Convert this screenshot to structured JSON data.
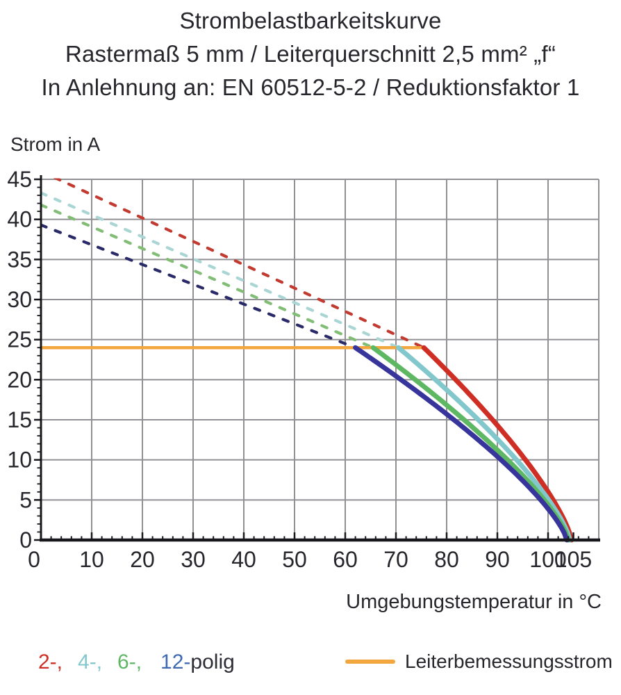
{
  "title": {
    "line1": "Strombelastbarkeitskurve",
    "line2": "Rastermaß 5 mm / Leiterquerschnitt 2,5 mm² „f“",
    "line3": "In Anlehnung an: EN 60512-5-2 / Reduktionsfaktor 1"
  },
  "axis_labels": {
    "y_label": "Strom in A",
    "x_label": "Umgebungstemperatur in °C"
  },
  "chart_data": {
    "type": "line",
    "title": "Strombelastbarkeitskurve",
    "xlabel": "Umgebungstemperatur in °C",
    "ylabel": "Strom in A",
    "xlim": [
      0,
      110
    ],
    "ylim": [
      0,
      45
    ],
    "grid": "on",
    "x_grid_step": 10,
    "y_grid_step": 5,
    "x_major_ticks": [
      0,
      10,
      20,
      30,
      40,
      50,
      60,
      70,
      80,
      90,
      100,
      105
    ],
    "x_minor_step": 2,
    "y_major_step": 5,
    "y_minor_step": 1,
    "rated_current_line": {
      "label": "Leiterbemessungsstrom",
      "current_a": 24,
      "temp_range_c": [
        0,
        75.5
      ],
      "color": "#f2a73e"
    },
    "curve_model": {
      "type": "power",
      "exponent": 0.75
    },
    "series": [
      {
        "name": "2-polig",
        "poles": 2,
        "color": "#ce2e24",
        "dash_color": "#c23a30",
        "current_at_0c_a": 46.0,
        "rated_plateau_a": 24,
        "plateau_end_temp_c": 75.5,
        "zero_current_temp_c": 104.6,
        "line_style_above_rated": "dashed"
      },
      {
        "name": "4-polig",
        "poles": 4,
        "color": "#82c7cb",
        "dash_color": "#a9d5d4",
        "current_at_0c_a": 43.3,
        "rated_plateau_a": 24,
        "plateau_end_temp_c": 70.5,
        "zero_current_temp_c": 104.3,
        "line_style_above_rated": "dashed"
      },
      {
        "name": "6-polig",
        "poles": 6,
        "color": "#5eb763",
        "dash_color": "#82bd76",
        "current_at_0c_a": 41.8,
        "rated_plateau_a": 24,
        "plateau_end_temp_c": 65.5,
        "zero_current_temp_c": 104.0,
        "line_style_above_rated": "dashed"
      },
      {
        "name": "12-polig",
        "poles": 12,
        "color": "#37349b",
        "dash_color": "#2a2a68",
        "current_at_0c_a": 39.3,
        "rated_plateau_a": 24,
        "plateau_end_temp_c": 62.0,
        "zero_current_temp_c": 103.7,
        "line_style_above_rated": "dashed"
      }
    ],
    "legend_position": "bottom"
  },
  "legend": {
    "pole_items": [
      {
        "label": "2-,",
        "color": "#ce2e24"
      },
      {
        "label": "4-,",
        "color": "#82c7cb"
      },
      {
        "label": "6-,",
        "color": "#5eb763"
      },
      {
        "label": "12-",
        "color": "#3e68b1"
      },
      {
        "label": "polig",
        "color": "#2d2d35"
      }
    ],
    "rated": {
      "label": "Leiterbemessungsstrom",
      "swatch_color": "#f2a73e"
    }
  },
  "colors": {
    "text": "#26262c",
    "grid": "#909095",
    "axis": "#17171c"
  }
}
